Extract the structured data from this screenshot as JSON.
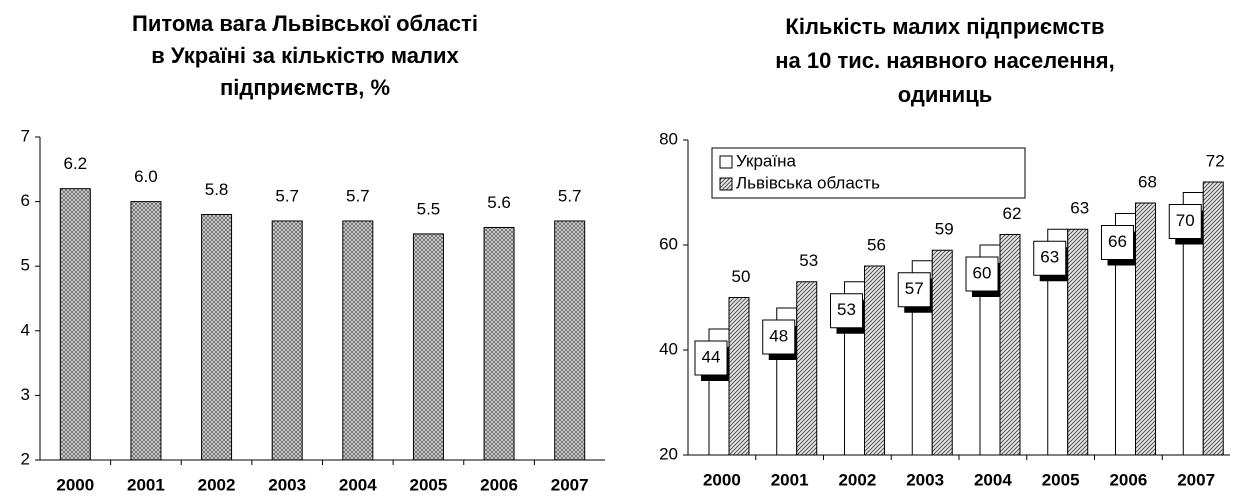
{
  "chart_data": [
    {
      "type": "bar",
      "title": [
        "Питома вага Львівської області",
        "в Україні за кількістю малих",
        "підприємств, %"
      ],
      "categories": [
        "2000",
        "2001",
        "2002",
        "2003",
        "2004",
        "2005",
        "2006",
        "2007"
      ],
      "values": [
        6.2,
        6.0,
        5.8,
        5.7,
        5.7,
        5.5,
        5.6,
        5.7
      ],
      "value_labels": [
        "6.2",
        "6.0",
        "5.8",
        "5.7",
        "5.7",
        "5.5",
        "5.6",
        "5.7"
      ],
      "color": "#9a9a9a",
      "pattern": "crosshatch",
      "ylim": [
        2,
        7
      ],
      "yticks": [
        2,
        3,
        4,
        5,
        6,
        7
      ]
    },
    {
      "type": "grouped_bar",
      "title": [
        "Кількість малих підприємств",
        "на 10 тис. наявного населення,",
        "одиниць"
      ],
      "categories": [
        "2000",
        "2001",
        "2002",
        "2003",
        "2004",
        "2005",
        "2006",
        "2007"
      ],
      "series": [
        {
          "name": "Україна",
          "color": "#ffffff",
          "values": [
            44,
            48,
            53,
            57,
            60,
            63,
            66,
            70
          ]
        },
        {
          "name": "Львівська область",
          "color": "#9a9a9a",
          "pattern": "diagonal",
          "values": [
            50,
            53,
            56,
            59,
            62,
            63,
            68,
            72
          ]
        }
      ],
      "legend": "top-left",
      "ylim": [
        20,
        80
      ],
      "yticks": [
        20,
        40,
        60,
        80
      ]
    }
  ]
}
